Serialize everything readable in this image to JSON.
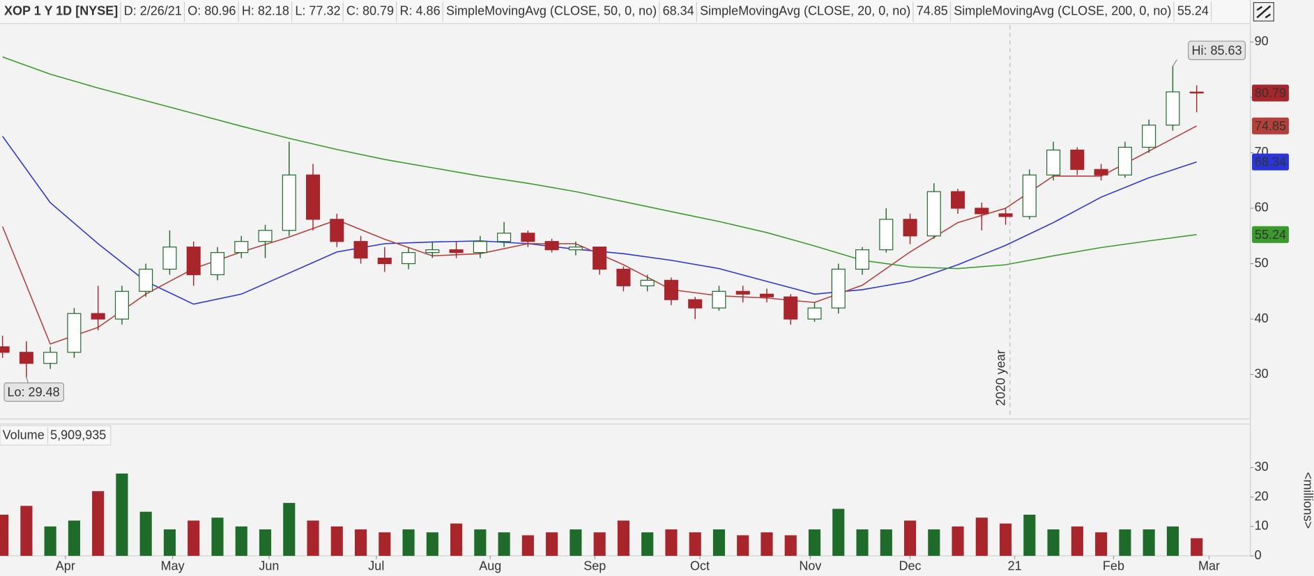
{
  "chart_data": [
    {
      "type": "candlestick",
      "title": "XOP 1 Y 1D [NYSE]",
      "readouts": [
        "D: 2/26/21",
        "O: 80.96",
        "H: 82.18",
        "L: 77.32",
        "C: 80.79",
        "R: 4.86"
      ],
      "hi_label": "Hi: 85.63",
      "lo_label": "Lo: 29.48",
      "year_label": "2020 year",
      "year_x": 210.9,
      "up_color": "#1e6b2a",
      "down_color": "#a8252b",
      "x": [
        0,
        5,
        10,
        15,
        20,
        25,
        30,
        35,
        40,
        45,
        50,
        55,
        60,
        65,
        70,
        75,
        80,
        85,
        90,
        95,
        100,
        105,
        110,
        115,
        120,
        125,
        130,
        135,
        140,
        145,
        150,
        155,
        160,
        165,
        170,
        175,
        180,
        185,
        190,
        195,
        200,
        205,
        210,
        215,
        220,
        225,
        230,
        235,
        240,
        245,
        250
      ],
      "open": [
        35,
        34,
        32,
        34,
        41,
        40,
        45,
        49,
        53,
        48,
        52,
        54,
        56,
        66,
        58,
        54,
        51,
        50,
        52,
        52.5,
        52,
        54,
        55.5,
        54,
        52.5,
        53,
        49,
        46,
        47,
        43.5,
        42,
        45,
        44.5,
        44,
        40,
        42,
        49,
        52.5,
        58,
        55,
        63,
        60,
        59,
        58.5,
        66,
        70.5,
        67,
        66,
        71,
        75,
        80.96
      ],
      "high": [
        37,
        36,
        35,
        42,
        46,
        46,
        50,
        56,
        54,
        53,
        55,
        57,
        72,
        68,
        59,
        55,
        53,
        53,
        54,
        54,
        55,
        57.5,
        56,
        54.5,
        54,
        53,
        49.5,
        48,
        47.5,
        44,
        46,
        46,
        45.5,
        44.5,
        43,
        50,
        53,
        60,
        59,
        64.5,
        63.5,
        61,
        60,
        67,
        72,
        71,
        68,
        72,
        76,
        85.63,
        82.18
      ],
      "low": [
        33,
        29.48,
        31,
        33,
        38,
        39,
        44,
        48,
        46,
        47,
        51,
        51,
        55,
        56,
        53,
        50,
        48.5,
        49,
        51,
        51,
        51,
        53,
        53,
        52,
        51.5,
        48,
        45,
        45,
        42.5,
        40,
        41.5,
        43,
        43,
        39,
        39.5,
        41,
        48,
        52,
        53.5,
        54.5,
        59,
        56,
        57,
        58,
        65,
        66,
        65,
        65.5,
        70,
        74,
        77.32
      ],
      "close": [
        34,
        32,
        34,
        41,
        40,
        45,
        49,
        53,
        48,
        52,
        54,
        56,
        66,
        58,
        54,
        51,
        50,
        52,
        52.5,
        52,
        54,
        55.5,
        54,
        52.5,
        53,
        49,
        46,
        47,
        43.5,
        42,
        45,
        44.5,
        44,
        40,
        42,
        49,
        52.5,
        58,
        55,
        63,
        60,
        59,
        58.5,
        66,
        70.5,
        67,
        66,
        71,
        75,
        81,
        80.79
      ],
      "series": [
        {
          "name": "SimpleMovingAvg (CLOSE, 50, 0, no)",
          "color": "#2a35d6",
          "x": [
            0,
            10,
            20,
            30,
            40,
            50,
            60,
            70,
            80,
            90,
            100,
            110,
            120,
            130,
            140,
            150,
            160,
            170,
            180,
            190,
            200,
            210,
            220,
            230,
            240,
            250
          ],
          "values": [
            73,
            61,
            53.6,
            46.8,
            42.7,
            44.5,
            48.3,
            52.1,
            53.6,
            53.9,
            54.1,
            53.6,
            52.6,
            51.8,
            50.6,
            49.1,
            46.8,
            44.5,
            45.3,
            46.8,
            49.8,
            53.3,
            57.4,
            62,
            65.5,
            68.34
          ]
        },
        {
          "name": "SimpleMovingAvg (CLOSE, 20, 0, no)",
          "color": "#b5403a",
          "x": [
            0,
            10,
            20,
            30,
            40,
            50,
            60,
            70,
            80,
            90,
            100,
            110,
            120,
            130,
            140,
            150,
            160,
            170,
            180,
            190,
            200,
            210,
            220,
            230,
            240,
            250
          ],
          "values": [
            56.7,
            35.5,
            38.5,
            44.5,
            49.1,
            52.1,
            54.8,
            57.9,
            54.4,
            51.4,
            51.8,
            53.6,
            53.6,
            49.8,
            45.3,
            44.2,
            43.8,
            43,
            46.1,
            52.1,
            57.4,
            60,
            65.8,
            65.8,
            70.3,
            74.85
          ]
        },
        {
          "name": "SimpleMovingAvg (CLOSE, 200, 0, no)",
          "color": "#3b9a2c",
          "x": [
            0,
            10,
            20,
            30,
            40,
            50,
            60,
            70,
            80,
            90,
            100,
            110,
            120,
            130,
            140,
            150,
            160,
            170,
            180,
            190,
            200,
            210,
            220,
            230,
            240,
            250
          ],
          "values": [
            87.3,
            84.2,
            81.7,
            79.4,
            77.1,
            74.8,
            72.6,
            70.6,
            68.8,
            67.3,
            65.8,
            64.5,
            63,
            61.2,
            59.4,
            57.6,
            55.6,
            53.2,
            50.6,
            49.4,
            49.1,
            49.8,
            51.4,
            52.9,
            54.1,
            55.24
          ]
        }
      ],
      "xlim": [
        -0.53,
        261.23
      ],
      "ylim": [
        22.27,
        93.03
      ],
      "yticks": [
        30,
        40,
        50,
        60,
        70,
        80,
        90
      ]
    },
    {
      "type": "bar",
      "title": "Volume",
      "readout": "5,909,935",
      "unit_label": "<millions>",
      "x": [
        0,
        5,
        10,
        15,
        20,
        25,
        30,
        35,
        40,
        45,
        50,
        55,
        60,
        65,
        70,
        75,
        80,
        85,
        90,
        95,
        100,
        105,
        110,
        115,
        120,
        125,
        130,
        135,
        140,
        145,
        150,
        155,
        160,
        165,
        170,
        175,
        180,
        185,
        190,
        195,
        200,
        205,
        210,
        215,
        220,
        225,
        230,
        235,
        240,
        245,
        250
      ],
      "values": [
        14,
        17,
        10,
        12,
        22,
        28,
        15,
        9,
        12,
        13,
        10,
        9,
        18,
        12,
        10,
        9,
        8,
        9,
        8,
        11,
        9,
        8,
        7,
        8,
        9,
        8,
        12,
        8,
        9,
        8,
        9,
        7,
        8,
        7,
        9,
        16,
        9,
        9,
        12,
        9,
        10,
        13,
        11,
        14,
        9,
        10,
        8,
        9,
        9,
        10,
        6
      ],
      "xlim": [
        -0.53,
        261.23
      ],
      "ylim": [
        0,
        37.7
      ],
      "yticks": [
        0,
        10,
        20,
        30
      ],
      "xticks": [
        {
          "value": 13.16,
          "label": "Apr"
        },
        {
          "value": 35.61,
          "label": "May"
        },
        {
          "value": 55.79,
          "label": "Jun"
        },
        {
          "value": 78.25,
          "label": "Jul"
        },
        {
          "value": 102.1,
          "label": "Aug"
        },
        {
          "value": 124.0,
          "label": "Sep"
        },
        {
          "value": 146.0,
          "label": "Oct"
        },
        {
          "value": 169.1,
          "label": "Nov"
        },
        {
          "value": 190.0,
          "label": "Dec"
        },
        {
          "value": 211.9,
          "label": "21"
        },
        {
          "value": 232.6,
          "label": "Feb"
        },
        {
          "value": 252.6,
          "label": "Mar"
        }
      ]
    }
  ]
}
